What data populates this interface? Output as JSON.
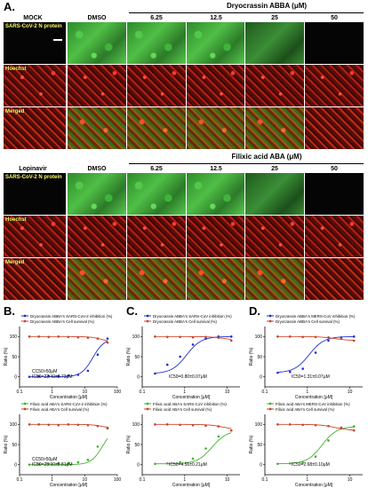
{
  "panels": {
    "a_label": "A.",
    "b_label": "B.",
    "c_label": "C.",
    "d_label": "D."
  },
  "block1": {
    "title": "Dryocrassin ABBA (μM)",
    "col_control": "MOCK",
    "col_dmso": "DMSO",
    "cols": [
      "6.25",
      "12.5",
      "25",
      "50"
    ],
    "rows": [
      "SARS-CoV-2 N protein",
      "Hoechst",
      "Merged"
    ]
  },
  "block2": {
    "title": "Filixic acid ABA (μM)",
    "col_control": "Lopinavir",
    "col_dmso": "DMSO",
    "cols": [
      "6.25",
      "12.5",
      "25",
      "50"
    ],
    "rows": [
      "SARS-CoV-2 N protein",
      "Hoechst",
      "Merged"
    ]
  },
  "chart_data": [
    {
      "type": "scatter",
      "panel": "B",
      "position": "top",
      "xlabel": "Concentration [μM]",
      "ylabel": "Ratio (%)",
      "xscale": "log",
      "xlim": [
        0.1,
        100
      ],
      "ylim": [
        -25,
        125
      ],
      "xticks": [
        "0.1",
        "1",
        "10",
        "100"
      ],
      "yticks": [
        "0",
        "50",
        "100"
      ],
      "annotation_lines": [
        "CC50>50μM",
        "IC50=22.40±0.73μM"
      ],
      "series": [
        {
          "name": "Dryocrassin ABBA's SARS-CoV-2 inhibition (%)",
          "color": "#1f2fd1",
          "x": [
            0.2,
            0.39,
            0.78,
            1.56,
            3.13,
            6.25,
            12.5,
            25,
            50
          ],
          "y": [
            0,
            1,
            2,
            1,
            3,
            5,
            15,
            55,
            95
          ]
        },
        {
          "name": "Dryocrassin ABBA's Cell survival (%)",
          "color": "#c9442a",
          "x": [
            0.2,
            0.39,
            0.78,
            1.56,
            3.13,
            6.25,
            12.5,
            25,
            50
          ],
          "y": [
            100,
            100,
            99,
            100,
            99,
            98,
            97,
            95,
            85
          ]
        }
      ]
    },
    {
      "type": "scatter",
      "panel": "B",
      "position": "bottom",
      "xlabel": "Concentration [μM]",
      "ylabel": "Ratio (%)",
      "xscale": "log",
      "xlim": [
        0.1,
        100
      ],
      "ylim": [
        -25,
        125
      ],
      "xticks": [
        "0.1",
        "1",
        "10",
        "100"
      ],
      "yticks": [
        "0",
        "50",
        "100"
      ],
      "annotation_lines": [
        "CC50>50μM",
        "IC50=25.90±0.81μM"
      ],
      "series": [
        {
          "name": "Filixic acid ABA's SARS-CoV-2 inhibition (%)",
          "color": "#43b02f",
          "x": [
            0.2,
            0.39,
            0.78,
            1.56,
            3.13,
            6.25,
            12.5,
            25,
            50
          ],
          "y": [
            0,
            1,
            2,
            3,
            4,
            6,
            12,
            45,
            92
          ]
        },
        {
          "name": "Filixic acid ABA's Cell survival (%)",
          "color": "#c9442a",
          "x": [
            0.2,
            0.39,
            0.78,
            1.56,
            3.13,
            6.25,
            12.5,
            25,
            50
          ],
          "y": [
            100,
            100,
            99,
            98,
            100,
            99,
            98,
            96,
            90
          ]
        }
      ]
    },
    {
      "type": "scatter",
      "panel": "C",
      "position": "top",
      "xlabel": "Concentration [μM]",
      "ylabel": "Ratio (%)",
      "xscale": "log",
      "xlim": [
        0.1,
        20
      ],
      "ylim": [
        -25,
        125
      ],
      "xticks": [
        "0.1",
        "1",
        "10"
      ],
      "yticks": [
        "0",
        "50",
        "100"
      ],
      "annotation_lines": [
        "IC50=0.80±0.07μM"
      ],
      "series": [
        {
          "name": "Dryocrassin ABBA's SARS-CoV inhibition (%)",
          "color": "#1f2fd1",
          "x": [
            0.2,
            0.39,
            0.78,
            1.56,
            3.13,
            6.25,
            12.5
          ],
          "y": [
            8,
            30,
            50,
            80,
            95,
            100,
            100
          ]
        },
        {
          "name": "Dryocrassin ABBA's Cell survival (%)",
          "color": "#c9442a",
          "x": [
            0.2,
            0.39,
            0.78,
            1.56,
            3.13,
            6.25,
            12.5
          ],
          "y": [
            100,
            99,
            99,
            98,
            99,
            97,
            90
          ]
        }
      ]
    },
    {
      "type": "scatter",
      "panel": "C",
      "position": "bottom",
      "xlabel": "Concentration [μM]",
      "ylabel": "Ratio (%)",
      "xscale": "log",
      "xlim": [
        0.1,
        20
      ],
      "ylim": [
        -25,
        125
      ],
      "xticks": [
        "0.1",
        "1",
        "10"
      ],
      "yticks": [
        "0",
        "50",
        "100"
      ],
      "annotation_lines": [
        "IC50=4.56±0.21μM"
      ],
      "series": [
        {
          "name": "Filixic acid ABA's SARS-CoV inhibition (%)",
          "color": "#43b02f",
          "x": [
            0.2,
            0.39,
            0.78,
            1.56,
            3.13,
            6.25,
            12.5
          ],
          "y": [
            2,
            3,
            6,
            15,
            40,
            70,
            85
          ]
        },
        {
          "name": "Filixic acid ABA's Cell survival (%)",
          "color": "#c9442a",
          "x": [
            0.2,
            0.39,
            0.78,
            1.56,
            3.13,
            6.25,
            12.5
          ],
          "y": [
            100,
            100,
            99,
            98,
            97,
            95,
            85
          ]
        }
      ]
    },
    {
      "type": "scatter",
      "panel": "D",
      "position": "top",
      "xlabel": "Concentration [μM]",
      "ylabel": "Ratio (%)",
      "xscale": "log",
      "xlim": [
        0.1,
        20
      ],
      "ylim": [
        -25,
        125
      ],
      "xticks": [
        "0.1",
        "1",
        "10"
      ],
      "yticks": [
        "0",
        "50",
        "100"
      ],
      "annotation_lines": [
        "IC50=1.31±0.07μM"
      ],
      "series": [
        {
          "name": "Dryocrassin ABBA's MERS-CoV inhibition (%)",
          "color": "#1f2fd1",
          "x": [
            0.2,
            0.39,
            0.78,
            1.56,
            3.13,
            6.25,
            12.5
          ],
          "y": [
            10,
            12,
            20,
            60,
            90,
            98,
            100
          ]
        },
        {
          "name": "Dryocrassin ABBA's Cell survival (%)",
          "color": "#c9442a",
          "x": [
            0.2,
            0.39,
            0.78,
            1.56,
            3.13,
            6.25,
            12.5
          ],
          "y": [
            100,
            100,
            99,
            99,
            98,
            95,
            90
          ]
        }
      ]
    },
    {
      "type": "scatter",
      "panel": "D",
      "position": "bottom",
      "xlabel": "Concentration [μM]",
      "ylabel": "Ratio (%)",
      "xscale": "log",
      "xlim": [
        0.1,
        20
      ],
      "ylim": [
        -25,
        125
      ],
      "xticks": [
        "0.1",
        "1",
        "10"
      ],
      "yticks": [
        "0",
        "50",
        "100"
      ],
      "annotation_lines": [
        "IC50=2.68±0.10μM"
      ],
      "series": [
        {
          "name": "Filixic acid ABA's MERS-CoV inhibition (%)",
          "color": "#43b02f",
          "x": [
            0.2,
            0.39,
            0.78,
            1.56,
            3.13,
            6.25,
            12.5
          ],
          "y": [
            2,
            3,
            5,
            20,
            60,
            90,
            95
          ]
        },
        {
          "name": "Filixic acid ABA's Cell survival (%)",
          "color": "#c9442a",
          "x": [
            0.2,
            0.39,
            0.78,
            1.56,
            3.13,
            6.25,
            12.5
          ],
          "y": [
            100,
            100,
            99,
            98,
            96,
            92,
            85
          ]
        }
      ]
    }
  ]
}
